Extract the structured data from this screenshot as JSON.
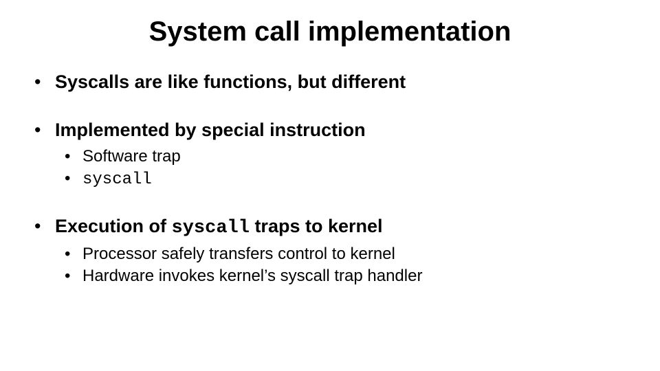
{
  "background_color": "#ffffff",
  "text_color": "#000000",
  "title": {
    "text": "System call implementation",
    "fontsize": 40,
    "weight": "bold",
    "align": "center"
  },
  "bullets": [
    {
      "text": "Syscalls are like functions, but different",
      "fontsize": 27,
      "weight": "bold",
      "children": []
    },
    {
      "text": "Implemented by special instruction",
      "fontsize": 27,
      "weight": "bold",
      "children": [
        {
          "text": "Software trap",
          "fontsize": 24,
          "mono": false
        },
        {
          "text": "syscall",
          "fontsize": 24,
          "mono": true
        }
      ]
    },
    {
      "prefix": "Execution of ",
      "mono_word": "syscall",
      "suffix": " traps to kernel",
      "fontsize": 27,
      "weight": "bold",
      "children": [
        {
          "text": "Processor safely transfers control to kernel",
          "fontsize": 24,
          "mono": false
        },
        {
          "text": "Hardware invokes kernel’s syscall trap handler",
          "fontsize": 24,
          "mono": false
        }
      ]
    }
  ]
}
